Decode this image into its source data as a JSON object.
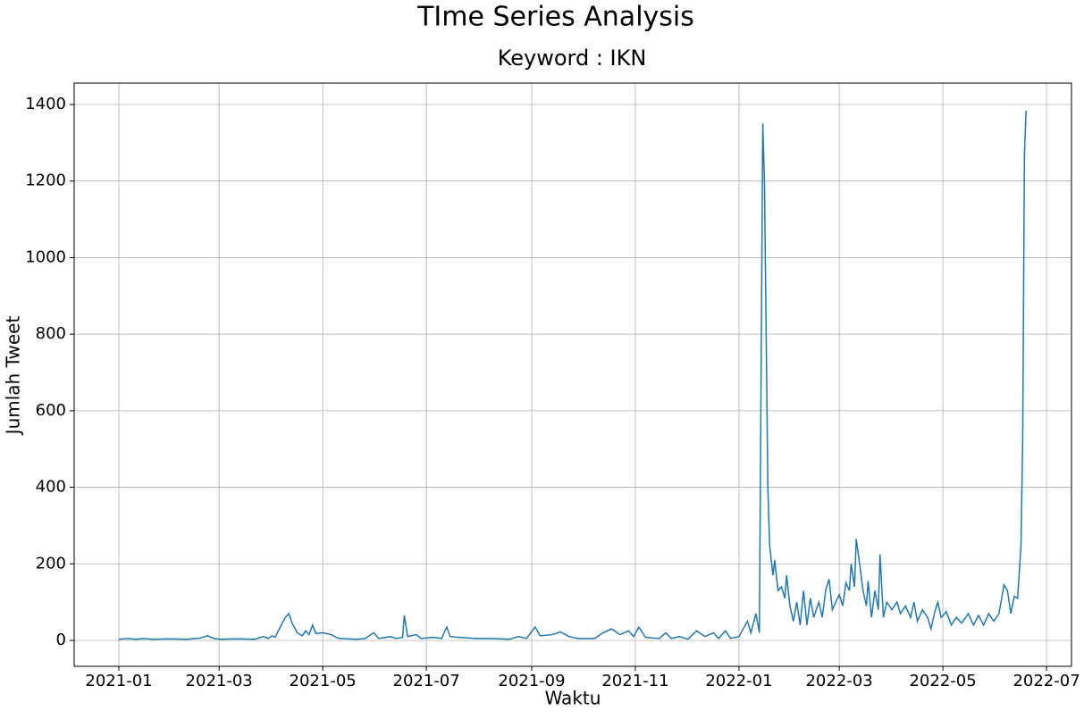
{
  "chart_data": {
    "type": "line",
    "title": "TIme Series Analysis",
    "subtitle": "Keyword : IKN",
    "x_label": "Waktu",
    "y_label": "Jumlah Tweet",
    "grid": true,
    "xlim": [
      -26.3,
      560.7
    ],
    "ylim": [
      -67.7,
      1456
    ],
    "xticks": [
      {
        "value": 0,
        "label": "2021-01"
      },
      {
        "value": 59,
        "label": "2021-03"
      },
      {
        "value": 120,
        "label": "2021-05"
      },
      {
        "value": 181,
        "label": "2021-07"
      },
      {
        "value": 243,
        "label": "2021-09"
      },
      {
        "value": 304,
        "label": "2021-11"
      },
      {
        "value": 365,
        "label": "2022-01"
      },
      {
        "value": 424,
        "label": "2022-03"
      },
      {
        "value": 485,
        "label": "2022-05"
      },
      {
        "value": 546,
        "label": "2022-07"
      }
    ],
    "yticks": [
      0,
      200,
      400,
      600,
      800,
      1000,
      1200,
      1400
    ],
    "x": [
      0,
      5,
      10,
      15,
      20,
      30,
      40,
      48,
      52,
      56,
      60,
      70,
      80,
      85,
      88,
      90,
      92,
      95,
      98,
      100,
      102,
      105,
      108,
      110,
      112,
      114,
      116,
      120,
      125,
      128,
      130,
      140,
      145,
      150,
      153,
      160,
      163,
      167,
      168,
      170,
      175,
      178,
      185,
      190,
      193,
      195,
      200,
      210,
      220,
      230,
      235,
      240,
      245,
      248,
      255,
      260,
      265,
      270,
      280,
      285,
      290,
      295,
      300,
      303,
      306,
      310,
      318,
      322,
      325,
      330,
      335,
      340,
      345,
      350,
      353,
      357,
      360,
      365,
      370,
      372,
      375,
      377,
      379,
      380,
      381,
      382,
      383,
      385,
      386,
      388,
      390,
      392,
      393,
      395,
      397,
      399,
      401,
      403,
      405,
      407,
      409,
      412,
      414,
      416,
      418,
      420,
      422,
      424,
      426,
      428,
      430,
      431,
      433,
      434,
      436,
      438,
      440,
      441,
      443,
      445,
      447,
      448,
      450,
      452,
      455,
      458,
      460,
      463,
      466,
      468,
      470,
      473,
      476,
      478,
      480,
      482,
      484,
      487,
      490,
      493,
      496,
      500,
      503,
      506,
      509,
      512,
      515,
      518,
      521,
      523,
      525,
      527,
      529,
      531,
      532,
      533,
      534
    ],
    "series": [
      {
        "name": "Jumlah Tweet",
        "color": "#1f77b4",
        "values": [
          3,
          5,
          3,
          5,
          3,
          4,
          3,
          6,
          12,
          5,
          3,
          4,
          3,
          10,
          5,
          12,
          8,
          35,
          60,
          70,
          45,
          20,
          12,
          25,
          15,
          40,
          18,
          20,
          15,
          8,
          5,
          3,
          5,
          20,
          5,
          10,
          5,
          8,
          65,
          10,
          15,
          5,
          8,
          5,
          35,
          10,
          8,
          5,
          5,
          3,
          10,
          5,
          35,
          12,
          15,
          22,
          10,
          5,
          5,
          20,
          30,
          15,
          25,
          10,
          35,
          8,
          5,
          20,
          5,
          10,
          3,
          25,
          10,
          20,
          5,
          25,
          5,
          10,
          50,
          20,
          70,
          20,
          1350,
          1200,
          800,
          400,
          250,
          170,
          210,
          130,
          140,
          110,
          170,
          90,
          50,
          100,
          40,
          130,
          40,
          110,
          60,
          100,
          60,
          130,
          160,
          80,
          100,
          120,
          90,
          150,
          130,
          200,
          140,
          265,
          200,
          130,
          90,
          155,
          60,
          130,
          80,
          225,
          60,
          100,
          80,
          100,
          70,
          90,
          60,
          100,
          50,
          80,
          60,
          30,
          70,
          100,
          60,
          75,
          40,
          60,
          45,
          70,
          40,
          65,
          40,
          70,
          50,
          70,
          145,
          130,
          70,
          115,
          110,
          250,
          530,
          1270,
          1385
        ]
      }
    ]
  }
}
